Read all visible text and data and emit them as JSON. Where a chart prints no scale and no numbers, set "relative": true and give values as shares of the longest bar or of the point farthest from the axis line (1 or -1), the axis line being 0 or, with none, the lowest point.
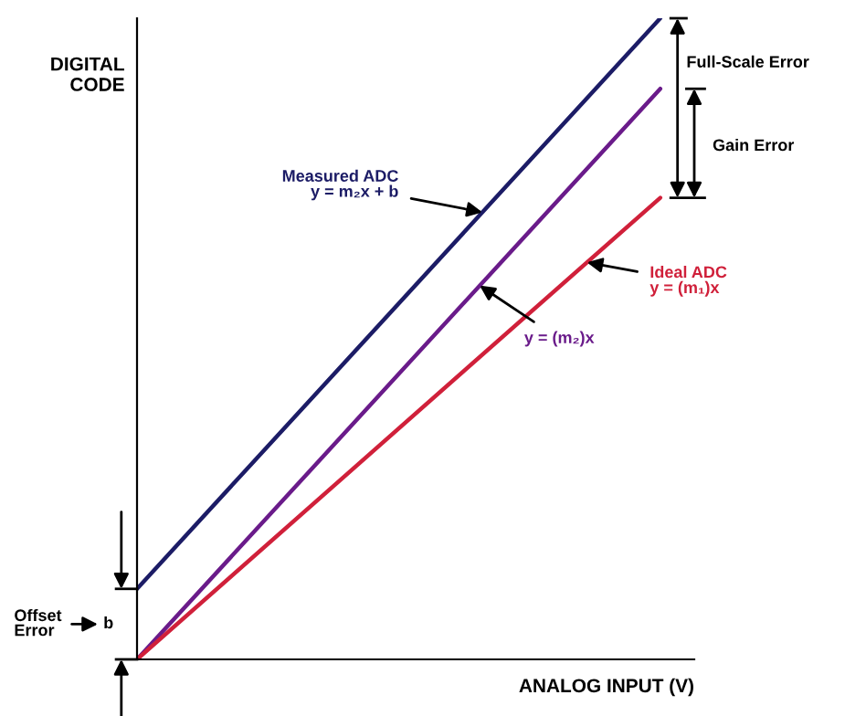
{
  "chart_data": {
    "type": "line",
    "relative": true,
    "xlabel": "ANALOG INPUT (V)",
    "ylabel": "DIGITAL\nCODE",
    "categories": [
      null,
      null
    ],
    "series": [
      {
        "name": "Measured ADC\ny = m₂x + b",
        "color": "#1c1c66",
        "values": [
          0.11,
          1
        ]
      },
      {
        "name": "y = (m₂)x",
        "color": "#6a1b8a",
        "values": [
          0,
          0.89
        ]
      },
      {
        "name": "Ideal ADC\ny = (m₁)x",
        "color": "#d0203a",
        "values": [
          0,
          0.72
        ]
      }
    ],
    "annotations": [
      "Full-Scale Error",
      "Gain Error",
      "Offset\nError",
      "b"
    ],
    "grid": false,
    "legend": false,
    "marker": "none",
    "line_style": "solid"
  }
}
